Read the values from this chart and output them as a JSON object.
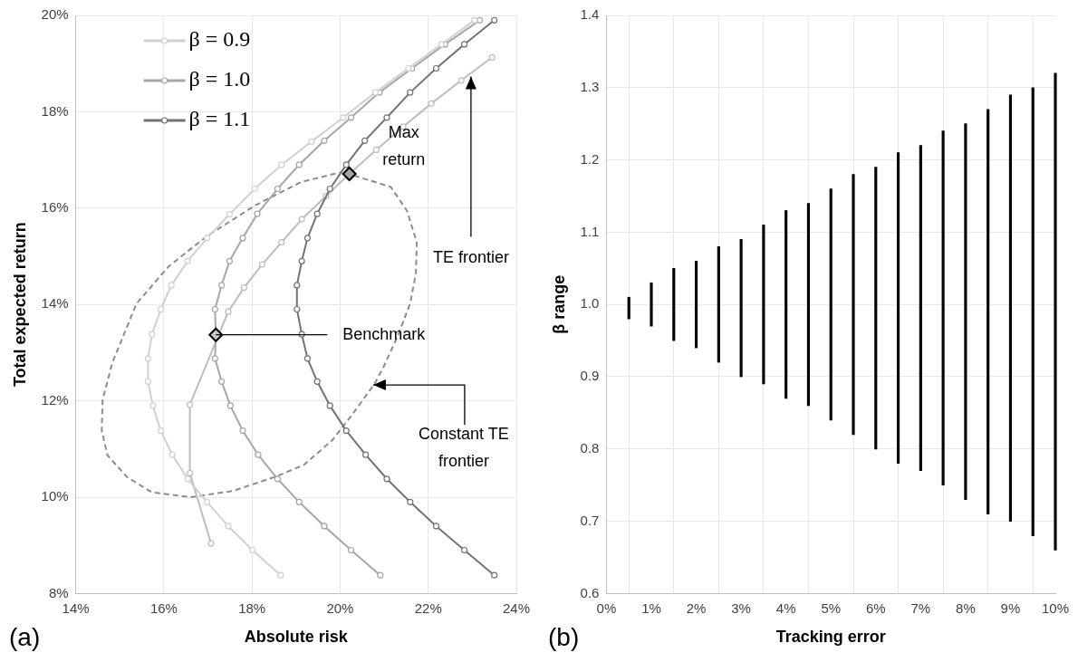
{
  "chart_data": [
    {
      "type": "line",
      "xlabel": "Absolute risk",
      "ylabel": "Total expected return",
      "xlim": [
        14,
        24
      ],
      "ylim": [
        8,
        20
      ],
      "xticks": [
        {
          "value": 14,
          "label": "14%"
        },
        {
          "value": 16,
          "label": "16%"
        },
        {
          "value": 18,
          "label": "18%"
        },
        {
          "value": 20,
          "label": "20%"
        },
        {
          "value": 22,
          "label": "22%"
        },
        {
          "value": 24,
          "label": "24%"
        }
      ],
      "yticks": [
        {
          "value": 8,
          "label": "8%"
        },
        {
          "value": 10,
          "label": "10%"
        },
        {
          "value": 12,
          "label": "12%"
        },
        {
          "value": 14,
          "label": "14%"
        },
        {
          "value": 16,
          "label": "16%"
        },
        {
          "value": 18,
          "label": "18%"
        },
        {
          "value": 20,
          "label": "20%"
        }
      ],
      "grid": true,
      "legend": "top left",
      "line_style": "solid",
      "series": [
        {
          "name": "β = 0.9",
          "color": "#d0d0d0",
          "marker": "circle",
          "x": [
            18.65,
            18.01,
            17.46,
            16.98,
            16.54,
            16.19,
            15.93,
            15.75,
            15.64,
            15.64,
            15.73,
            15.93,
            16.17,
            16.54,
            16.98,
            17.49,
            18.06,
            18.67,
            19.35,
            20.07,
            20.8,
            21.55,
            22.3,
            23.05
          ],
          "values": [
            8.38,
            8.9,
            9.4,
            9.9,
            10.38,
            10.88,
            11.38,
            11.9,
            12.4,
            12.88,
            13.38,
            13.9,
            14.4,
            14.9,
            15.38,
            15.87,
            16.4,
            16.9,
            17.38,
            17.88,
            18.4,
            18.9,
            19.4,
            19.9
          ]
        },
        {
          "name": "β = 1.0",
          "color": "#a6a6a6",
          "marker": "circle",
          "x": [
            20.91,
            20.25,
            19.64,
            19.07,
            18.58,
            18.14,
            17.79,
            17.51,
            17.31,
            17.16,
            17.18,
            17.16,
            17.31,
            17.49,
            17.79,
            18.12,
            18.58,
            19.07,
            19.64,
            20.25,
            20.89,
            21.63,
            22.38,
            23.17
          ],
          "values": [
            8.38,
            8.9,
            9.4,
            9.9,
            10.38,
            10.88,
            11.38,
            11.9,
            12.4,
            12.88,
            13.37,
            13.9,
            14.4,
            14.9,
            15.38,
            15.88,
            16.4,
            16.9,
            17.4,
            17.88,
            18.4,
            18.9,
            19.4,
            19.9
          ]
        },
        {
          "name": "β = 1.1",
          "color": "#737373",
          "marker": "circle",
          "x": [
            23.5,
            22.82,
            22.18,
            21.59,
            21.06,
            20.58,
            20.14,
            19.77,
            19.48,
            19.26,
            19.13,
            19.02,
            19.02,
            19.13,
            19.26,
            19.48,
            19.77,
            20.14,
            20.56,
            21.06,
            21.59,
            22.18,
            22.82,
            23.5
          ],
          "values": [
            8.38,
            8.9,
            9.4,
            9.9,
            10.38,
            10.88,
            11.38,
            11.9,
            12.4,
            12.88,
            13.38,
            13.9,
            14.4,
            14.9,
            15.38,
            15.88,
            16.4,
            16.9,
            17.4,
            17.88,
            18.4,
            18.9,
            19.4,
            19.9
          ]
        },
        {
          "color": "#bdbdbd",
          "marker": "circle",
          "x": [
            17.07,
            16.59,
            16.59,
            17.18,
            17.46,
            17.82,
            18.23,
            18.67,
            19.13,
            19.68,
            20.21,
            20.82,
            21.43,
            22.07,
            22.75,
            23.45
          ],
          "values": [
            9.04,
            10.5,
            11.92,
            null,
            13.85,
            14.35,
            14.83,
            15.29,
            15.77,
            16.25,
            16.71,
            17.21,
            17.69,
            18.17,
            18.65,
            19.13
          ]
        },
        {
          "color": "#8c8c8c",
          "marker": "none",
          "line_style": "dashed",
          "x": [
            20.12,
            21.15,
            21.52,
            21.74,
            21.72,
            21.59,
            21.32,
            21.0,
            20.78,
            20.27,
            19.83,
            19.18,
            18.52,
            17.57,
            16.61,
            15.73,
            15.16,
            14.72,
            14.59,
            14.61,
            14.83,
            15.38,
            16.11,
            16.98,
            18.08,
            19.11,
            20.0
          ],
          "values": [
            16.73,
            16.44,
            15.94,
            15.29,
            14.65,
            14.02,
            13.37,
            12.73,
            12.35,
            11.71,
            11.19,
            10.67,
            10.42,
            10.13,
            10.0,
            10.1,
            10.42,
            10.87,
            11.38,
            12.02,
            12.79,
            14.02,
            14.79,
            15.42,
            16.06,
            16.54,
            16.74
          ]
        },
        {
          "type": "scatter",
          "color": "#a6a6a6",
          "marker": "diamond",
          "x": [
            20.21
          ],
          "values": [
            16.71
          ]
        },
        {
          "type": "scatter",
          "color": "#c8c8c8",
          "marker": "diamond",
          "x": [
            17.18
          ],
          "values": [
            13.37
          ]
        }
      ],
      "annotations": [
        {
          "text": "Max return",
          "x": 20.21,
          "y": 16.71
        },
        {
          "text": "Benchmark",
          "x": 17.18,
          "y": 13.37
        },
        {
          "text": "TE frontier",
          "x": 22.97,
          "y": 18.73
        },
        {
          "text": "Constant TE frontier",
          "x": 20.75,
          "y": 12.33
        },
        "(a)"
      ]
    },
    {
      "type": "bar",
      "xlabel": "Tracking error",
      "ylabel": "β range",
      "xlim": [
        0,
        10
      ],
      "ylim": [
        0.6,
        1.4
      ],
      "xticks": [
        {
          "value": 0,
          "label": "0%"
        },
        {
          "value": 1,
          "label": "1%"
        },
        {
          "value": 2,
          "label": "2%"
        },
        {
          "value": 3,
          "label": "3%"
        },
        {
          "value": 4,
          "label": "4%"
        },
        {
          "value": 5,
          "label": "5%"
        },
        {
          "value": 6,
          "label": "6%"
        },
        {
          "value": 7,
          "label": "7%"
        },
        {
          "value": 8,
          "label": "8%"
        },
        {
          "value": 9,
          "label": "9%"
        },
        {
          "value": 10,
          "label": "10%"
        }
      ],
      "yticks": [
        0.6,
        0.7,
        0.8,
        0.9,
        {
          "value": 1,
          "label": "1.0"
        },
        1.1,
        1.2,
        1.3,
        1.4
      ],
      "grid": true,
      "color": "#000000",
      "x": [
        0.5,
        1,
        1.5,
        2,
        2.5,
        3,
        3.5,
        4,
        4.5,
        5,
        5.5,
        6,
        6.5,
        7,
        7.5,
        8,
        8.5,
        9,
        9.5,
        10
      ],
      "base": [
        0.98,
        0.97,
        0.95,
        0.94,
        0.92,
        0.9,
        0.89,
        0.87,
        0.86,
        0.84,
        0.82,
        0.8,
        0.78,
        0.77,
        0.75,
        0.73,
        0.71,
        0.7,
        0.68,
        0.66
      ],
      "values": [
        0.03,
        0.06,
        0.1,
        0.12,
        0.16,
        0.19,
        0.22,
        0.26,
        0.28,
        0.32,
        0.36,
        0.39,
        0.43,
        0.45,
        0.49,
        0.52,
        0.56,
        0.59,
        0.62,
        0.66
      ],
      "annotations": [
        "(b)"
      ]
    }
  ]
}
